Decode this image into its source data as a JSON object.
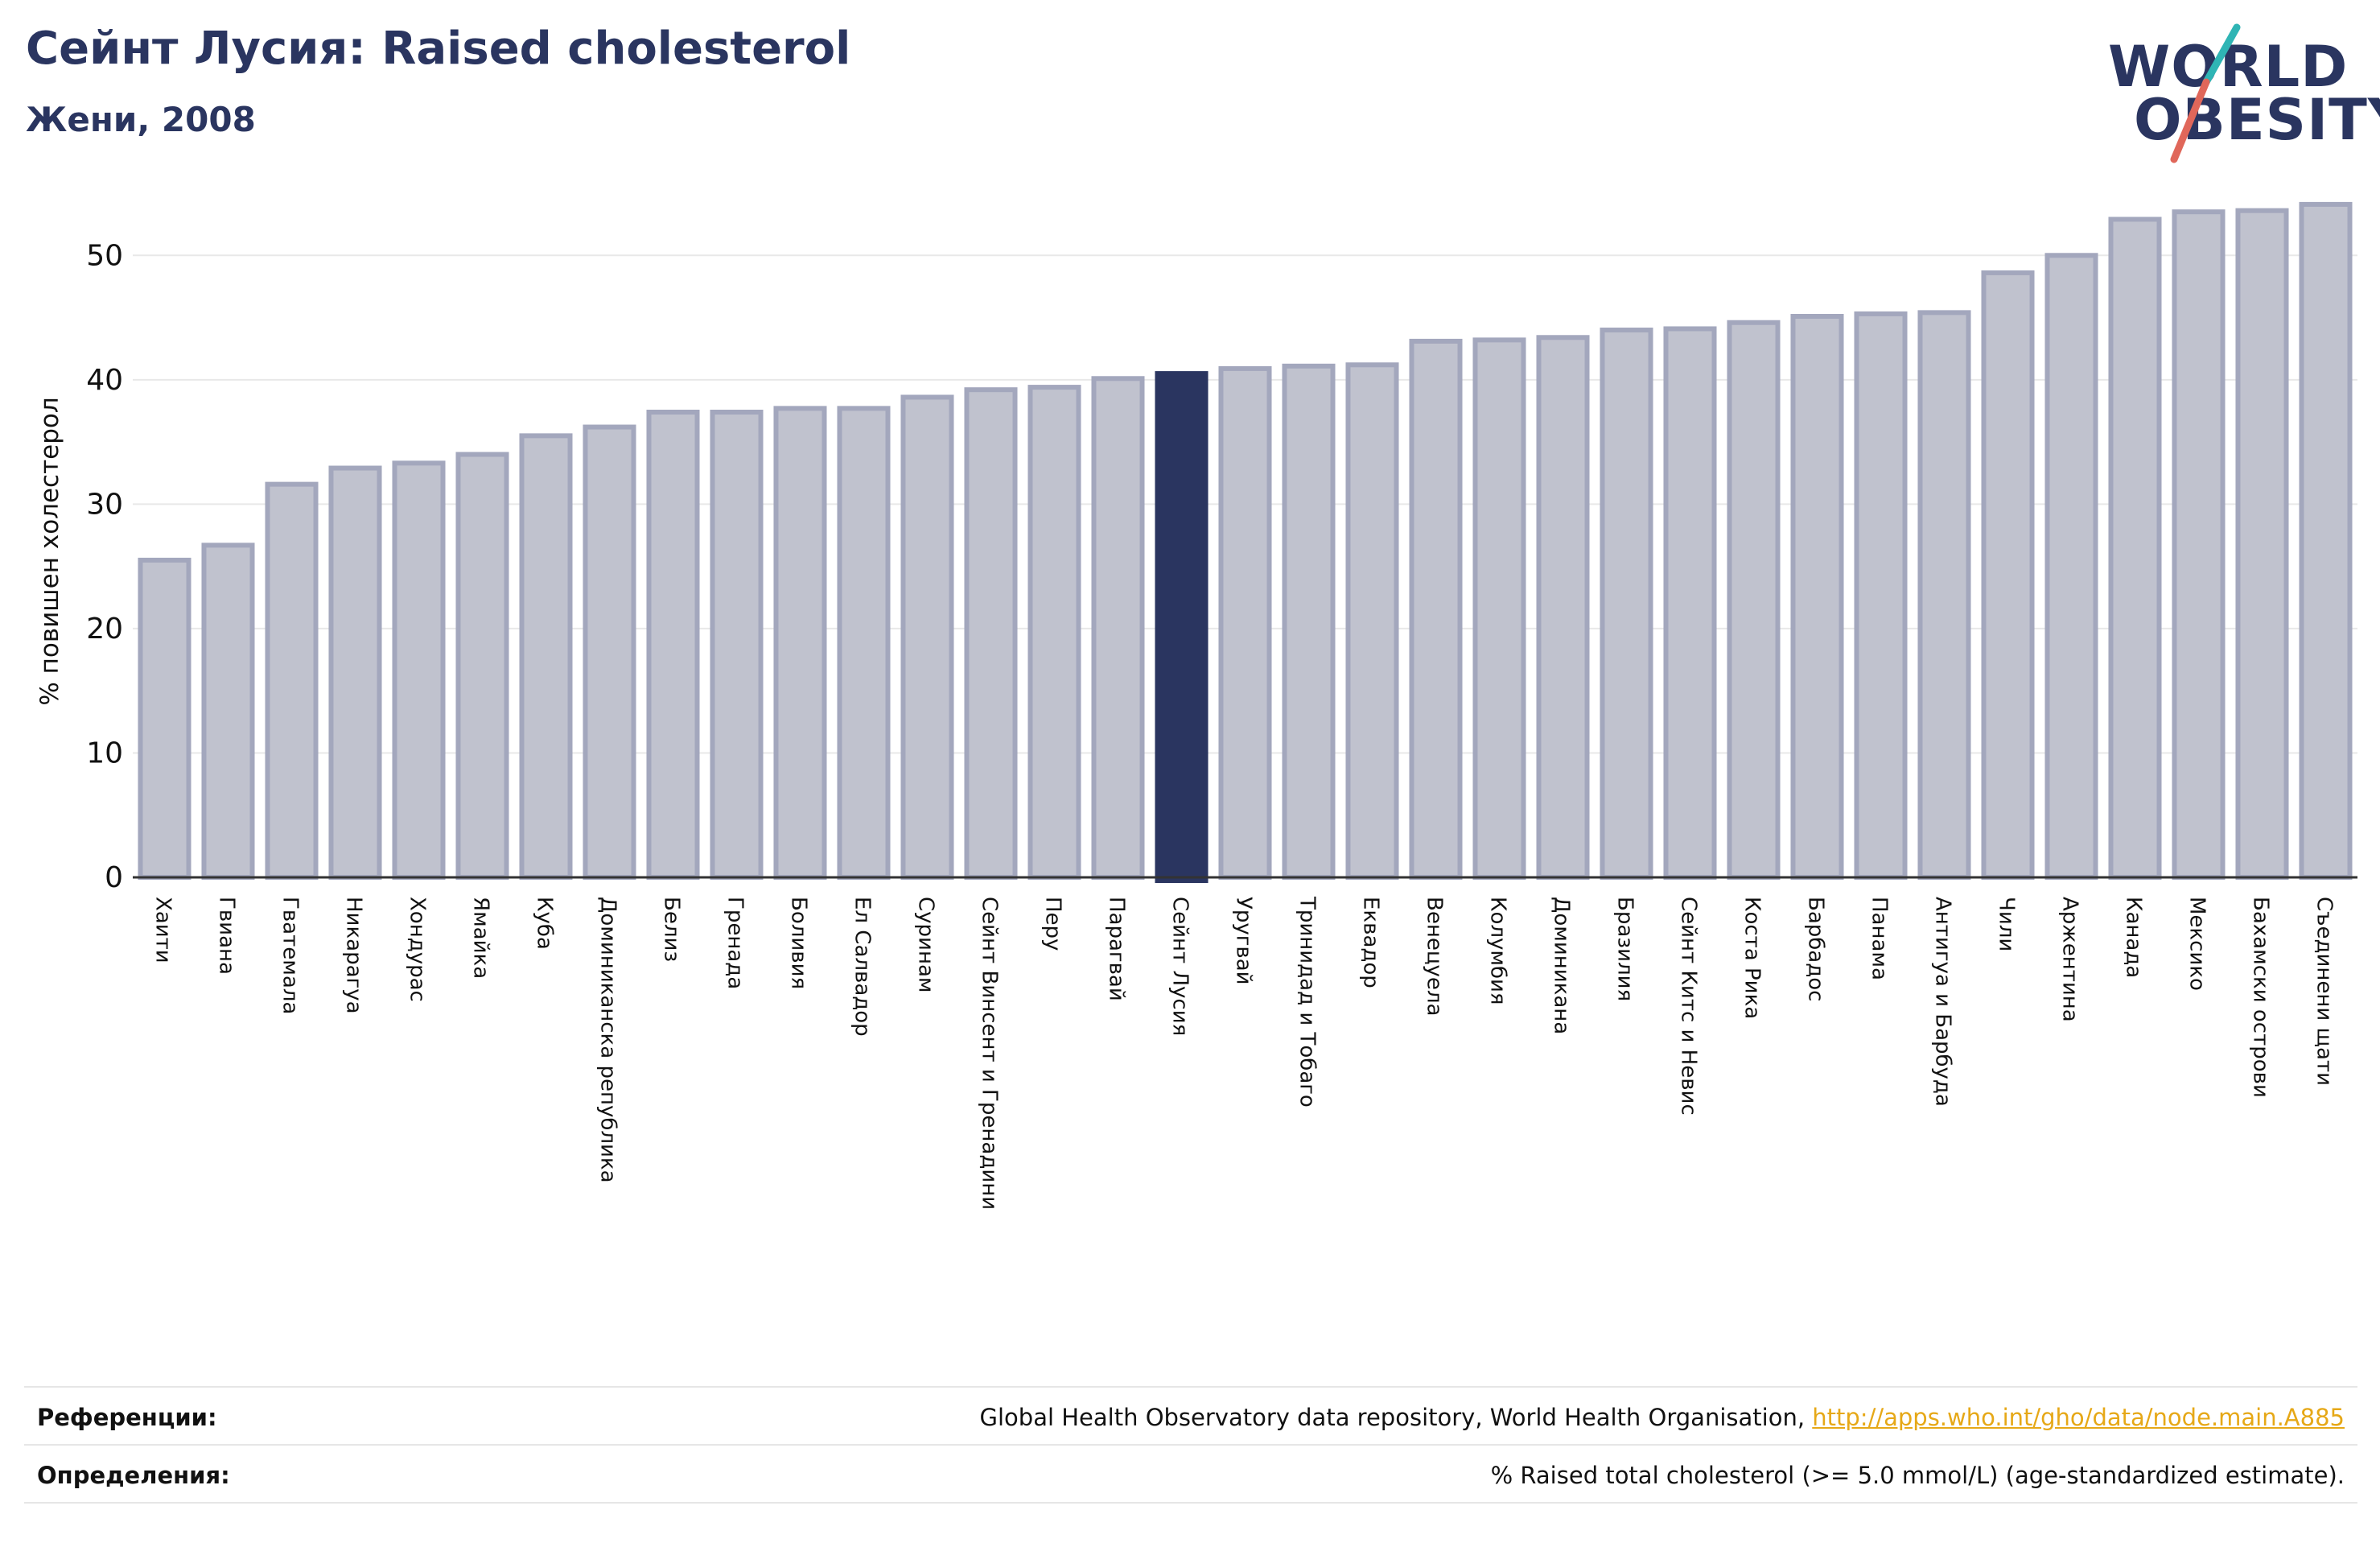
{
  "header": {
    "title": "Сейнт Лусия: Raised cholesterol",
    "subtitle": "Жени, 2008"
  },
  "logo": {
    "line1": "WORLD",
    "line2": "OBESITY",
    "colors": {
      "text": "#2a3560",
      "slash_teal": "#2fb5b5",
      "slash_red": "#e0675a"
    }
  },
  "chart_data": {
    "type": "bar",
    "ylabel": "% повишен холестерол",
    "ylim": [
      0,
      55
    ],
    "yticks": [
      0,
      10,
      20,
      30,
      40,
      50
    ],
    "grid": true,
    "highlight": "Сейнт Лусия",
    "colors": {
      "bar": "#c0c2ce",
      "bar_edge": "#a3a7bd",
      "highlight": "#2a3560",
      "grid": "#e8e8e8",
      "axis": "#333333"
    },
    "categories": [
      "Хаити",
      "Гвиана",
      "Гватемала",
      "Никарагуа",
      "Хондурас",
      "Ямайка",
      "Куба",
      "Доминиканска република",
      "Белиз",
      "Гренада",
      "Боливия",
      "Ел Салвадор",
      "Суринам",
      "Сейнт Винсент и Гренадини",
      "Перу",
      "Парагвай",
      "Сейнт Лусия",
      "Уругвай",
      "Тринидад и Тобаго",
      "Еквадор",
      "Венецуела",
      "Колумбия",
      "Доминикана",
      "Бразилия",
      "Сейнт Китс и Невис",
      "Коста Рика",
      "Барбадос",
      "Панама",
      "Антигуа и Барбуда",
      "Чили",
      "Аржентина",
      "Канада",
      "Мексико",
      "Бахамски острови",
      "Съединени щати"
    ],
    "values": [
      25.5,
      26.7,
      31.6,
      32.9,
      33.3,
      34.0,
      35.5,
      36.2,
      37.4,
      37.4,
      37.7,
      37.7,
      38.6,
      39.2,
      39.4,
      40.1,
      40.5,
      40.9,
      41.1,
      41.2,
      43.1,
      43.2,
      43.4,
      44.0,
      44.1,
      44.6,
      45.1,
      45.3,
      45.4,
      48.6,
      50.0,
      52.9,
      53.5,
      53.6,
      54.1
    ]
  },
  "footer": {
    "references_label": "Референции:",
    "references_text": "Global Health Observatory data repository, World Health Organisation, ",
    "references_link": "http://apps.who.int/gho/data/node.main.A885",
    "definitions_label": "Определения:",
    "definitions_text": "% Raised total cholesterol (>= 5.0 mmol/L) (age-standardized estimate)."
  }
}
